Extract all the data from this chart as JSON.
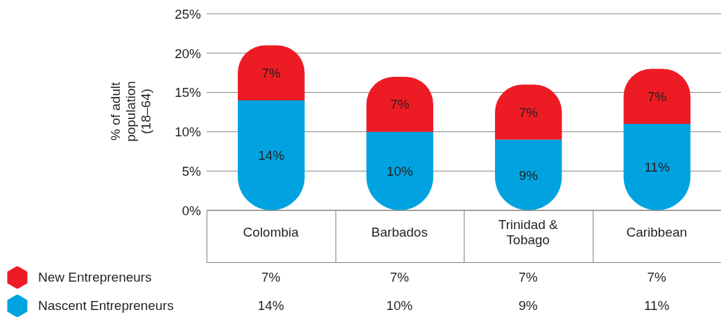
{
  "chart_data": {
    "type": "bar",
    "stacked": true,
    "ylabel": "% of adult population (18–64)",
    "categories": [
      "Colombia",
      "Barbados",
      "Trinidad & Tobago",
      "Caribbean"
    ],
    "series": [
      {
        "name": "Nascent Entrepreneurs",
        "color": "#00a3e0",
        "values": [
          14,
          10,
          9,
          11
        ],
        "value_labels": [
          "14%",
          "10%",
          "9%",
          "11%"
        ]
      },
      {
        "name": "New Entrepreneurs",
        "color": "#ed1c24",
        "values": [
          7,
          7,
          7,
          7
        ],
        "value_labels": [
          "7%",
          "7%",
          "7%",
          "7%"
        ]
      }
    ],
    "ylim": [
      0,
      25
    ],
    "yticks": [
      {
        "value": 0,
        "label": "0%"
      },
      {
        "value": 5,
        "label": "5%"
      },
      {
        "value": 10,
        "label": "10%"
      },
      {
        "value": 15,
        "label": "15%"
      },
      {
        "value": 20,
        "label": "20%"
      },
      {
        "value": 25,
        "label": "25%"
      }
    ],
    "grid": "y",
    "legend": "bottom left"
  }
}
